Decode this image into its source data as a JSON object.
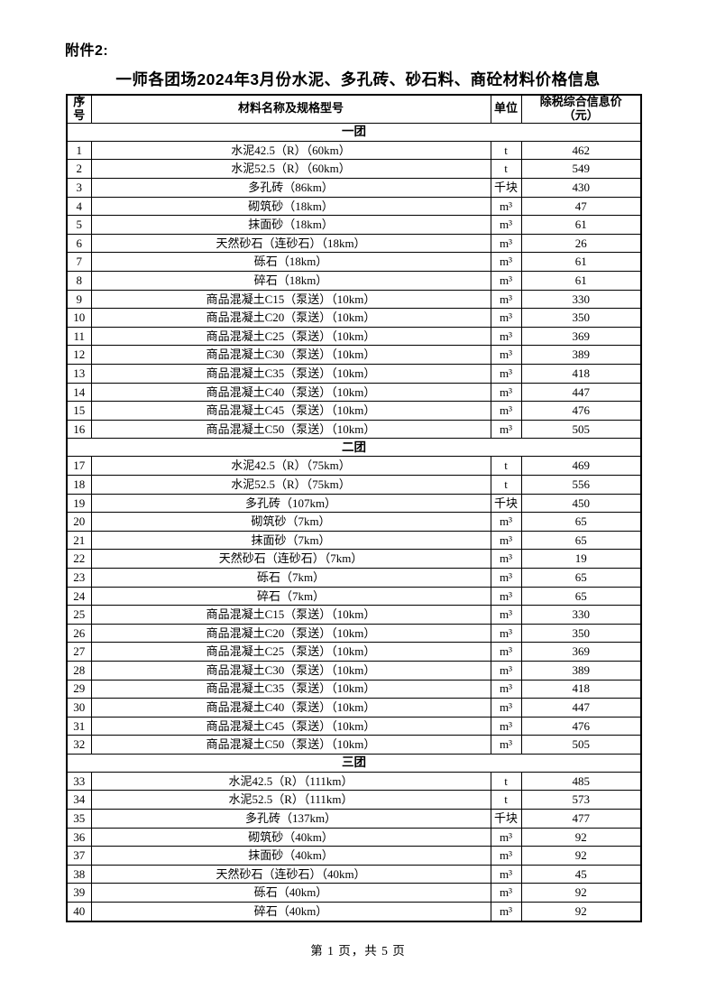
{
  "page": {
    "attachment_label": "附件2:",
    "title": "一师各团场2024年3月份水泥、多孔砖、砂石料、商砼材料价格信息",
    "footer": "第 1 页，共 5 页"
  },
  "table": {
    "columns": [
      {
        "label": "序号"
      },
      {
        "label": "材料名称及规格型号"
      },
      {
        "label": "单位"
      },
      {
        "label": "除税综合信息价",
        "label2": "（元）"
      }
    ],
    "sections": [
      {
        "name": "一团",
        "rows": [
          [
            "1",
            "水泥42.5（R）（60km）",
            "t",
            "462"
          ],
          [
            "2",
            "水泥52.5（R）（60km）",
            "t",
            "549"
          ],
          [
            "3",
            "多孔砖（86km）",
            "千块",
            "430"
          ],
          [
            "4",
            "砌筑砂（18km）",
            "m³",
            "47"
          ],
          [
            "5",
            "抹面砂（18km）",
            "m³",
            "61"
          ],
          [
            "6",
            "天然砂石（连砂石）（18km）",
            "m³",
            "26"
          ],
          [
            "7",
            "砾石（18km）",
            "m³",
            "61"
          ],
          [
            "8",
            "碎石（18km）",
            "m³",
            "61"
          ],
          [
            "9",
            "商品混凝土C15（泵送）（10km）",
            "m³",
            "330"
          ],
          [
            "10",
            "商品混凝土C20（泵送）（10km）",
            "m³",
            "350"
          ],
          [
            "11",
            "商品混凝土C25（泵送）（10km）",
            "m³",
            "369"
          ],
          [
            "12",
            "商品混凝土C30（泵送）（10km）",
            "m³",
            "389"
          ],
          [
            "13",
            "商品混凝土C35（泵送）（10km）",
            "m³",
            "418"
          ],
          [
            "14",
            "商品混凝土C40（泵送）（10km）",
            "m³",
            "447"
          ],
          [
            "15",
            "商品混凝土C45（泵送）（10km）",
            "m³",
            "476"
          ],
          [
            "16",
            "商品混凝土C50（泵送）（10km）",
            "m³",
            "505"
          ]
        ]
      },
      {
        "name": "二团",
        "rows": [
          [
            "17",
            "水泥42.5（R）（75km）",
            "t",
            "469"
          ],
          [
            "18",
            "水泥52.5（R）（75km）",
            "t",
            "556"
          ],
          [
            "19",
            "多孔砖（107km）",
            "千块",
            "450"
          ],
          [
            "20",
            "砌筑砂（7km）",
            "m³",
            "65"
          ],
          [
            "21",
            "抹面砂（7km）",
            "m³",
            "65"
          ],
          [
            "22",
            "天然砂石（连砂石）（7km）",
            "m³",
            "19"
          ],
          [
            "23",
            "砾石（7km）",
            "m³",
            "65"
          ],
          [
            "24",
            "碎石（7km）",
            "m³",
            "65"
          ],
          [
            "25",
            "商品混凝土C15（泵送）（10km）",
            "m³",
            "330"
          ],
          [
            "26",
            "商品混凝土C20（泵送）（10km）",
            "m³",
            "350"
          ],
          [
            "27",
            "商品混凝土C25（泵送）（10km）",
            "m³",
            "369"
          ],
          [
            "28",
            "商品混凝土C30（泵送）（10km）",
            "m³",
            "389"
          ],
          [
            "29",
            "商品混凝土C35（泵送）（10km）",
            "m³",
            "418"
          ],
          [
            "30",
            "商品混凝土C40（泵送）（10km）",
            "m³",
            "447"
          ],
          [
            "31",
            "商品混凝土C45（泵送）（10km）",
            "m³",
            "476"
          ],
          [
            "32",
            "商品混凝土C50（泵送）（10km）",
            "m³",
            "505"
          ]
        ]
      },
      {
        "name": "三团",
        "rows": [
          [
            "33",
            "水泥42.5（R）（111km）",
            "t",
            "485"
          ],
          [
            "34",
            "水泥52.5（R）（111km）",
            "t",
            "573"
          ],
          [
            "35",
            "多孔砖（137km）",
            "千块",
            "477"
          ],
          [
            "36",
            "砌筑砂（40km）",
            "m³",
            "92"
          ],
          [
            "37",
            "抹面砂（40km）",
            "m³",
            "92"
          ],
          [
            "38",
            "天然砂石（连砂石）（40km）",
            "m³",
            "45"
          ],
          [
            "39",
            "砾石（40km）",
            "m³",
            "92"
          ],
          [
            "40",
            "碎石（40km）",
            "m³",
            "92"
          ]
        ]
      }
    ]
  }
}
